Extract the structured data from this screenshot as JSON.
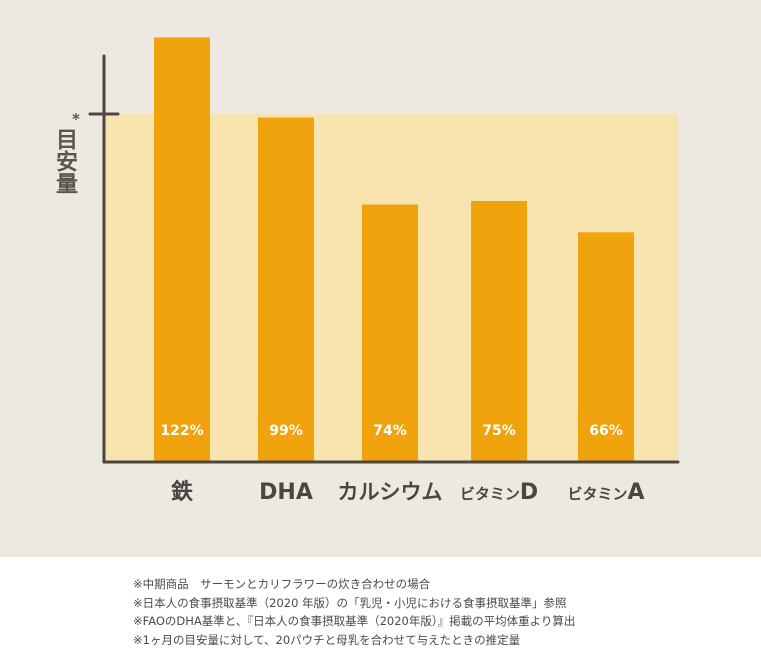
{
  "chart_data": {
    "type": "bar",
    "categories": [
      "鉄",
      "DHA",
      "カルシウム",
      "ビタミンD",
      "ビタミンA"
    ],
    "category_parts": [
      {
        "small": "",
        "large": "鉄"
      },
      {
        "small": "",
        "large": "DHA"
      },
      {
        "small": "",
        "large": "カルシウム"
      },
      {
        "small": "ビタミン",
        "large": "D"
      },
      {
        "small": "ビタミン",
        "large": "A"
      }
    ],
    "values": [
      122,
      99,
      74,
      75,
      66
    ],
    "value_labels": [
      "122%",
      "99%",
      "74%",
      "75%",
      "66%"
    ],
    "ylabel": "目安量",
    "ylabel_marker": "*",
    "reference_value": 100,
    "ylim": [
      0,
      135
    ],
    "grid": false,
    "colors": {
      "bar": "#f0a30c",
      "reference_band": "#f6e3ae",
      "axis": "#4a4642",
      "background": "#ede8e2"
    }
  },
  "notes": [
    "※中期商品　サーモンとカリフラワーの炊き合わせの場合",
    "※日本人の食事摂取基準（2020 年版）の「乳児・小児における食事摂取基準」参照",
    "※FAOのDHA基準と、『日本人の食事摂取基準（2020年版）』掲載の平均体重より算出",
    "※1ヶ月の目安量に対して、20パウチと母乳を合わせて与えたときの推定量"
  ]
}
